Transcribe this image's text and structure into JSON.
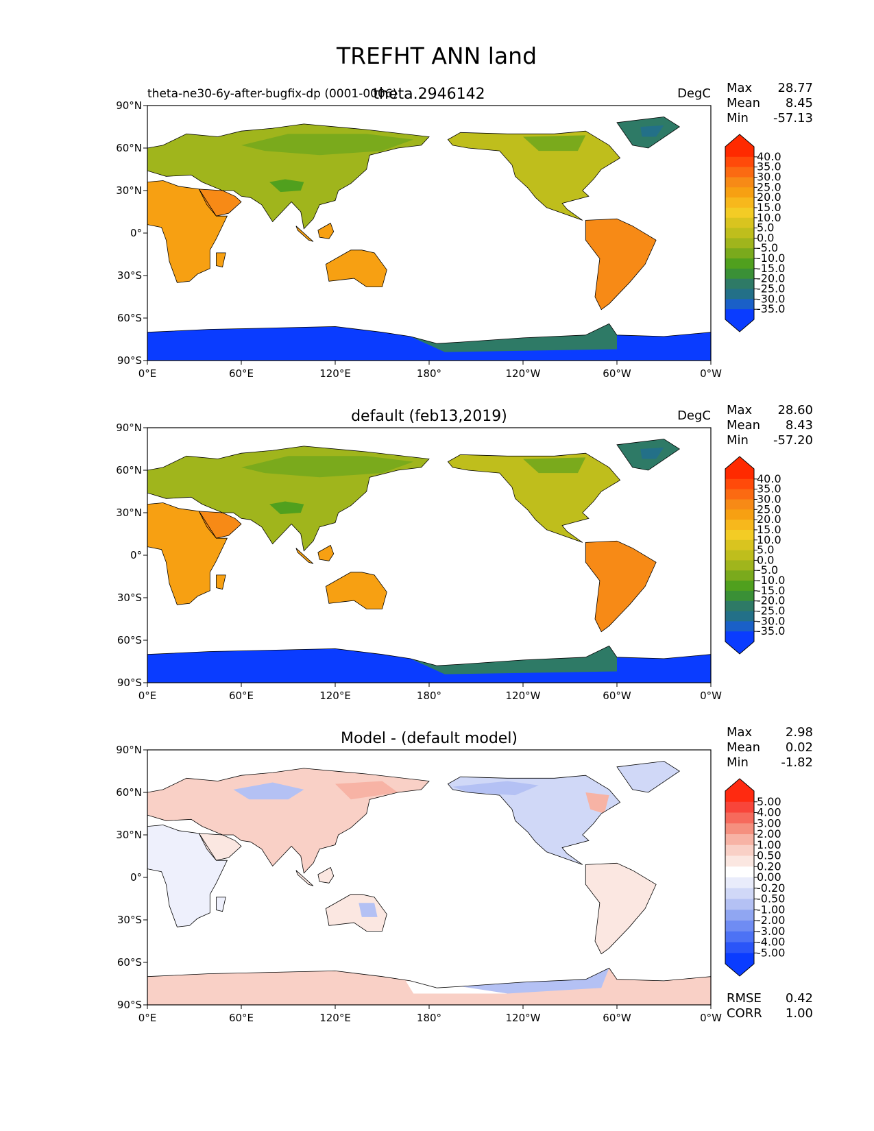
{
  "figure": {
    "title": "TREFHT ANN land"
  },
  "axes": {
    "lat_ticks": [
      "90°N",
      "60°N",
      "30°N",
      "0°",
      "30°S",
      "60°S",
      "90°S"
    ],
    "lon_ticks": [
      "0°E",
      "60°E",
      "120°E",
      "180°",
      "120°W",
      "60°W",
      "0°W"
    ]
  },
  "panels": [
    {
      "id": "test",
      "title": "theta.2946142",
      "left_title": "theta-ne30-6y-after-bugfix-dp (0001-0006)",
      "units": "DegC",
      "stats": [
        {
          "label": "Max",
          "value": "28.77"
        },
        {
          "label": "Mean",
          "value": "8.45"
        },
        {
          "label": "Min",
          "value": "-57.13"
        }
      ],
      "colorbar": {
        "levels": [
          "40.0",
          "35.0",
          "30.0",
          "25.0",
          "20.0",
          "15.0",
          "10.0",
          "5.0",
          "0.0",
          "-5.0",
          "-10.0",
          "-15.0",
          "-20.0",
          "-25.0",
          "-30.0",
          "-35.0"
        ],
        "colors": [
          "#ff2a00",
          "#ff4a0a",
          "#fb6a12",
          "#f78a16",
          "#f7a012",
          "#f7b81c",
          "#f3cc25",
          "#d9c41f",
          "#bfbe1c",
          "#a0b51c",
          "#7aaa1c",
          "#50a01e",
          "#3a9036",
          "#2e7a66",
          "#237088",
          "#1a60c8",
          "#0a3cff"
        ],
        "top_color": "#ff2a00",
        "bottom_color": "#0a3cff"
      }
    },
    {
      "id": "reference",
      "title": "default (feb13,2019)",
      "left_title": "",
      "units": "DegC",
      "stats": [
        {
          "label": "Max",
          "value": "28.60"
        },
        {
          "label": "Mean",
          "value": "8.43"
        },
        {
          "label": "Min",
          "value": "-57.20"
        }
      ],
      "colorbar": {
        "levels": [
          "40.0",
          "35.0",
          "30.0",
          "25.0",
          "20.0",
          "15.0",
          "10.0",
          "5.0",
          "0.0",
          "-5.0",
          "-10.0",
          "-15.0",
          "-20.0",
          "-25.0",
          "-30.0",
          "-35.0"
        ],
        "colors": [
          "#ff2a00",
          "#ff4a0a",
          "#fb6a12",
          "#f78a16",
          "#f7a012",
          "#f7b81c",
          "#f3cc25",
          "#d9c41f",
          "#bfbe1c",
          "#a0b51c",
          "#7aaa1c",
          "#50a01e",
          "#3a9036",
          "#2e7a66",
          "#237088",
          "#1a60c8",
          "#0a3cff"
        ],
        "top_color": "#ff2a00",
        "bottom_color": "#0a3cff"
      }
    },
    {
      "id": "diff",
      "title": "Model - (default model)",
      "left_title": "",
      "units": "",
      "stats": [
        {
          "label": "Max",
          "value": "2.98"
        },
        {
          "label": "Mean",
          "value": "0.02"
        },
        {
          "label": "Min",
          "value": "-1.82"
        }
      ],
      "extra_stats": [
        {
          "label": "RMSE",
          "value": "0.42"
        },
        {
          "label": "CORR",
          "value": "1.00"
        }
      ],
      "colorbar": {
        "levels": [
          "5.00",
          "4.00",
          "3.00",
          "2.00",
          "1.00",
          "0.50",
          "0.20",
          "0.00",
          "-0.20",
          "-0.50",
          "-1.00",
          "-2.00",
          "-3.00",
          "-4.00",
          "-5.00"
        ],
        "colors": [
          "#ff2a10",
          "#f8453a",
          "#f66a5c",
          "#f5907f",
          "#f7b3a5",
          "#f9d0c6",
          "#fbe7e1",
          "#ffffff",
          "#e9ecfb",
          "#d0d8f7",
          "#b4c1f4",
          "#90a6f2",
          "#6f8cf3",
          "#4d72f5",
          "#2a55f8",
          "#0a3cff"
        ],
        "top_color": "#ff2a10",
        "bottom_color": "#0a3cff"
      }
    }
  ]
}
